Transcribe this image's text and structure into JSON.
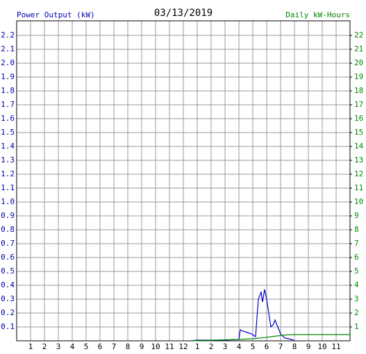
{
  "chart_data": {
    "type": "line",
    "title": "03/13/2019",
    "y_label": "Power Output (kW)",
    "y2_label": "Daily kW-Hours",
    "xlim": [
      0,
      24
    ],
    "ylim": [
      0,
      2.3
    ],
    "y2lim": [
      0,
      23
    ],
    "grid": true,
    "xticks": [
      1,
      2,
      3,
      4,
      5,
      6,
      7,
      8,
      9,
      10,
      11,
      12,
      {
        "value": 13,
        "label": "1"
      },
      {
        "value": 14,
        "label": "2"
      },
      {
        "value": 15,
        "label": "3"
      },
      {
        "value": 16,
        "label": "4"
      },
      {
        "value": 17,
        "label": "5"
      },
      {
        "value": 18,
        "label": "6"
      },
      {
        "value": 19,
        "label": "7"
      },
      {
        "value": 20,
        "label": "8"
      },
      {
        "value": 21,
        "label": "9"
      },
      {
        "value": 22,
        "label": "10"
      },
      {
        "value": 23,
        "label": "11"
      }
    ],
    "yticks": [
      0.1,
      0.2,
      0.3,
      0.4,
      0.5,
      0.6,
      0.7,
      0.8,
      0.9,
      {
        "value": 1,
        "label": "1.0"
      },
      1.1,
      1.2,
      1.3,
      1.4,
      1.5,
      1.6,
      1.7,
      1.8,
      1.9,
      {
        "value": 2,
        "label": "2.0"
      },
      2.1,
      2.2
    ],
    "y2ticks": [
      1,
      2,
      3,
      4,
      5,
      6,
      7,
      8,
      9,
      10,
      11,
      12,
      13,
      14,
      15,
      16,
      17,
      18,
      19,
      20,
      21,
      22
    ],
    "y_color": "#0000aa",
    "y2_color": "#008800",
    "series": [
      {
        "name": "Power Output (kW)",
        "color": "#0000cc",
        "x": [
          12.5,
          13,
          14,
          15,
          16,
          16.1,
          16.3,
          16.6,
          16.9,
          17.2,
          17.4,
          17.6,
          17.7,
          17.85,
          18.0,
          18.3,
          18.5,
          18.6,
          18.8,
          19.0,
          19.3,
          19.8,
          20
        ],
        "values": [
          0,
          0.005,
          0.005,
          0.005,
          0.01,
          0.08,
          0.07,
          0.06,
          0.05,
          0.03,
          0.3,
          0.35,
          0.28,
          0.37,
          0.3,
          0.1,
          0.12,
          0.15,
          0.1,
          0.05,
          0.02,
          0.01,
          0
        ]
      },
      {
        "name": "Daily kW-Hours",
        "color": "#008800",
        "axis": "y2",
        "x": [
          12.5,
          16,
          17,
          18,
          18.5,
          19,
          19.5,
          20,
          24
        ],
        "values": [
          0,
          0.1,
          0.15,
          0.25,
          0.32,
          0.38,
          0.43,
          0.45,
          0.45
        ]
      }
    ]
  }
}
